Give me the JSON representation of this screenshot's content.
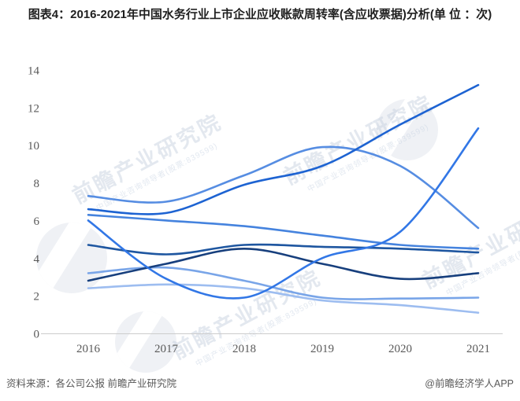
{
  "header": {
    "title": "图表4：2016-2021年中国水务行业上市企业应收账款周转率(含应收票据)分析(单 位 ：次)"
  },
  "footer": {
    "source": "资料来源：各公司公报 前瞻产业研究院",
    "credit": "@前瞻经济学人APP"
  },
  "watermark": {
    "brand": "前瞻产业研究院",
    "sub": "中国产业咨询领导者(股票:839599)"
  },
  "axis_colors": {
    "tick_text": "#595959",
    "axis_line": "#cccccc"
  },
  "chart_data": {
    "type": "line",
    "title": "2016-2021年中国水务行业上市企业应收账款周转率(含应收票据)",
    "unit": "次",
    "xlabel": "",
    "ylabel": "",
    "categories": [
      "2016",
      "2017",
      "2018",
      "2019",
      "2020",
      "2021"
    ],
    "y_ticks": [
      0,
      2,
      4,
      6,
      8,
      10,
      12,
      14
    ],
    "ylim": [
      0,
      14
    ],
    "grid": false,
    "legend_position": "none",
    "series": [
      {
        "name": "line-1",
        "color": "#568de2",
        "values": [
          7.3,
          7.0,
          8.4,
          9.9,
          8.9,
          5.6
        ]
      },
      {
        "name": "line-3",
        "color": "#4583de",
        "values": [
          6.3,
          6.0,
          5.7,
          5.2,
          4.7,
          4.5
        ]
      },
      {
        "name": "line-7",
        "color": "#79a5e8",
        "values": [
          3.2,
          3.5,
          2.8,
          1.9,
          1.85,
          1.9
        ]
      },
      {
        "name": "line-8",
        "color": "#9dbdf0",
        "values": [
          2.4,
          2.6,
          2.4,
          1.75,
          1.5,
          1.1
        ]
      },
      {
        "name": "line-4",
        "color": "#1e56a0",
        "values": [
          4.7,
          4.2,
          4.7,
          4.6,
          4.5,
          4.3
        ]
      },
      {
        "name": "line-6",
        "color": "#173f7d",
        "values": [
          2.8,
          3.7,
          4.5,
          3.7,
          2.9,
          3.2
        ]
      },
      {
        "name": "line-2",
        "color": "#1d63d2",
        "values": [
          6.6,
          6.4,
          7.9,
          8.9,
          11.1,
          13.2
        ]
      },
      {
        "name": "line-5",
        "color": "#3277e6",
        "values": [
          6.0,
          2.9,
          1.9,
          4.0,
          5.4,
          10.9
        ]
      }
    ]
  }
}
